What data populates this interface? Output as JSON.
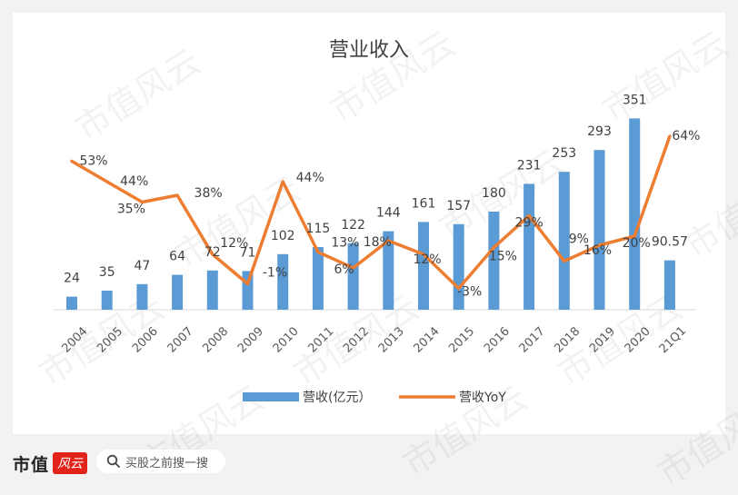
{
  "chart_data": {
    "type": "bar",
    "title": "营业收入",
    "categories": [
      "2004",
      "2005",
      "2006",
      "2007",
      "2008",
      "2009",
      "2010",
      "2011",
      "2012",
      "2013",
      "2014",
      "2015",
      "2016",
      "2017",
      "2018",
      "2019",
      "2020",
      "21Q1"
    ],
    "series": [
      {
        "name": "营收(亿元）",
        "type": "bar",
        "values": [
          24,
          35,
          47,
          64,
          72,
          71,
          102,
          115,
          122,
          144,
          161,
          157,
          180,
          231,
          253,
          293,
          351,
          90.57
        ],
        "labels": [
          "24",
          "35",
          "47",
          "64",
          "72",
          "71",
          "102",
          "115",
          "122",
          "144",
          "161",
          "157",
          "180",
          "231",
          "253",
          "293",
          "351",
          "90.57"
        ],
        "color": "#5b9bd5"
      },
      {
        "name": "营收YoY",
        "type": "line",
        "values": [
          53,
          44,
          35,
          38,
          12,
          -1,
          44,
          13,
          6,
          18,
          12,
          -3,
          15,
          29,
          9,
          16,
          20,
          64
        ],
        "labels": [
          "53%",
          "44%",
          "35%",
          "38%",
          "12%",
          "-1%",
          "44%",
          "13%",
          "6%",
          "18%",
          "12%",
          "-3%",
          "15%",
          "29%",
          "9%",
          "16%",
          "20%",
          "64%"
        ],
        "color": "#ed7d31"
      }
    ],
    "legend": "bottom",
    "grid": false
  },
  "footer": {
    "brand": "市值",
    "seal": "风云",
    "search_placeholder": "买股之前搜一搜"
  },
  "watermark": "市值风云"
}
